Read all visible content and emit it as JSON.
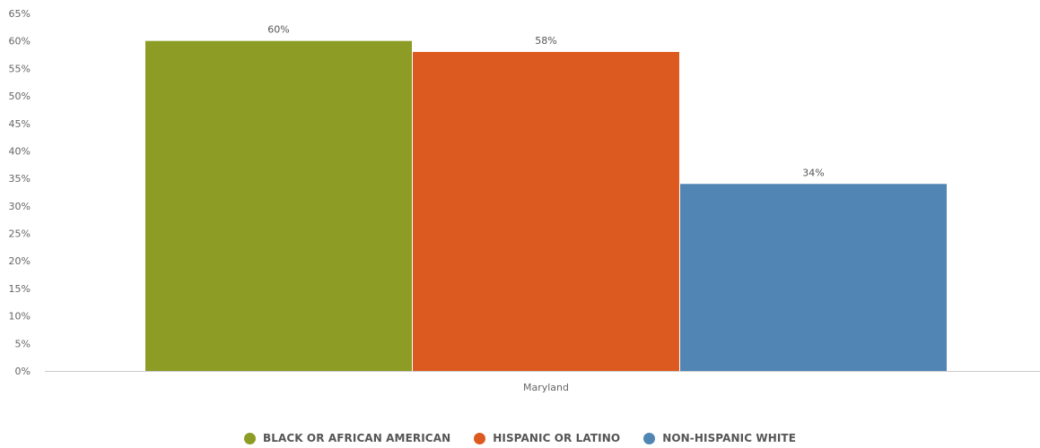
{
  "chart_data": {
    "type": "bar",
    "title": "",
    "xlabel": "",
    "ylabel": "",
    "categories": [
      "Maryland"
    ],
    "series": [
      {
        "name": "BLACK OR AFRICAN AMERICAN",
        "values": [
          60
        ],
        "color": "#8c9c24",
        "label": "60%"
      },
      {
        "name": "HISPANIC OR LATINO",
        "values": [
          58
        ],
        "color": "#dc5a20",
        "label": "58%"
      },
      {
        "name": "NON-HISPANIC WHITE",
        "values": [
          34
        ],
        "color": "#5085b4",
        "label": "34%"
      }
    ],
    "ylim": [
      0,
      65
    ],
    "y_ticks": [
      "0%",
      "5%",
      "10%",
      "15%",
      "20%",
      "25%",
      "30%",
      "35%",
      "40%",
      "45%",
      "50%",
      "55%",
      "60%",
      "65%"
    ],
    "grid": false,
    "legend_position": "bottom-center"
  }
}
